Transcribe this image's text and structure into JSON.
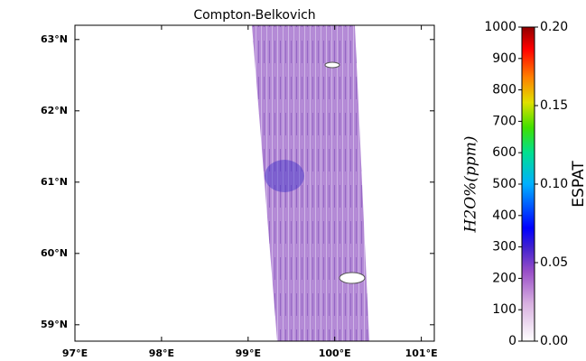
{
  "map": {
    "title": "Compton-Belkovich",
    "lon_lim": [
      97,
      101.15
    ],
    "lat_lim": [
      58.77,
      63.2
    ],
    "lon_ticks": [
      {
        "value": 97,
        "label": "97°E"
      },
      {
        "value": 98,
        "label": "98°E"
      },
      {
        "value": 99,
        "label": "99°E"
      },
      {
        "value": 100,
        "label": "100°E"
      },
      {
        "value": 101,
        "label": "101°E"
      }
    ],
    "lat_ticks": [
      {
        "value": 59,
        "label": "59°N"
      },
      {
        "value": 60,
        "label": "60°N"
      },
      {
        "value": 61,
        "label": "61°N"
      },
      {
        "value": 62,
        "label": "62°N"
      },
      {
        "value": 63,
        "label": "63°N"
      }
    ]
  },
  "colorbar": {
    "ppm": {
      "label": "H2O%(ppm)",
      "lim": [
        0,
        1000
      ],
      "ticks": [
        0,
        100,
        200,
        300,
        400,
        500,
        600,
        700,
        800,
        900,
        1000
      ]
    },
    "espat": {
      "label": "ESPAT",
      "lim": [
        0,
        0.2
      ],
      "ticks": [
        {
          "value": 0,
          "label": "0.00"
        },
        0.05,
        {
          "value": 0.1,
          "label": "0.10"
        },
        0.15,
        {
          "value": 0.2,
          "label": "0.20"
        }
      ]
    }
  }
}
